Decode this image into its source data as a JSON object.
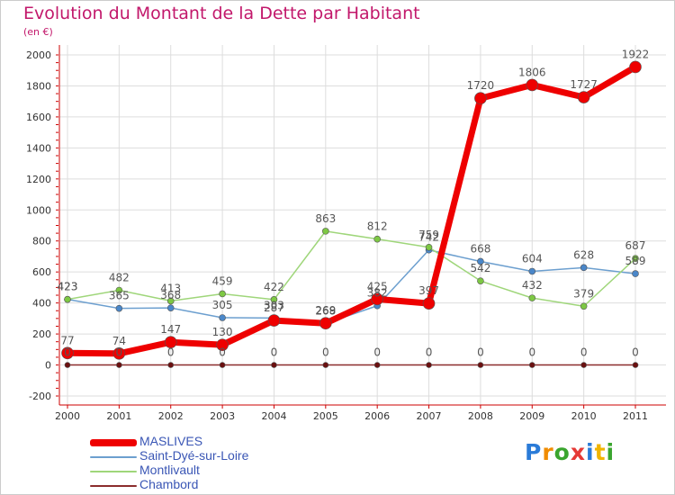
{
  "header": {
    "title": "Evolution du Montant de la Dette par Habitant",
    "subtitle": "(en €)"
  },
  "colors": {
    "title": "#c2186b",
    "grid": "#dddddd",
    "axis": "#cc0000",
    "legend_text": "#3a56b5"
  },
  "logo": {
    "letters": [
      {
        "ch": "P",
        "color": "#2a7bd8"
      },
      {
        "ch": "r",
        "color": "#f08c00"
      },
      {
        "ch": "o",
        "color": "#3aa52e"
      },
      {
        "ch": "x",
        "color": "#e53935"
      },
      {
        "ch": "i",
        "color": "#2a7bd8"
      },
      {
        "ch": "t",
        "color": "#f0b400"
      },
      {
        "ch": "i",
        "color": "#3aa52e"
      }
    ]
  },
  "chart_data": {
    "type": "line",
    "x": [
      "2000",
      "2001",
      "2002",
      "2003",
      "2004",
      "2005",
      "2006",
      "2007",
      "2008",
      "2009",
      "2010",
      "2011"
    ],
    "ylim": [
      -200,
      2000
    ],
    "yticks": [
      -200,
      0,
      200,
      400,
      600,
      800,
      1000,
      1200,
      1400,
      1600,
      1800,
      2000
    ],
    "grid": "horizontal",
    "legend_position": "bottom-left",
    "series": [
      {
        "name": "Chambord",
        "color": "#8b2c2c",
        "dot": "#6b1010",
        "width": 1.5,
        "r": 3,
        "values": [
          0,
          0,
          0,
          0,
          0,
          0,
          0,
          0,
          0,
          0,
          0,
          0
        ],
        "labels": [
          "0",
          "0",
          "0",
          "0",
          "0",
          "0",
          "0",
          "0",
          "0",
          "0",
          "0",
          "0"
        ]
      },
      {
        "name": "Saint-Dyé-sur-Loire",
        "color": "#6c9fcf",
        "dot": "#4a87c9",
        "width": 1.5,
        "r": 3.5,
        "values": [
          423,
          365,
          368,
          305,
          303,
          268,
          382,
          742,
          668,
          604,
          628,
          589
        ],
        "labels": [
          "423",
          "365",
          "368",
          "305",
          "303",
          "268",
          "382",
          "742",
          "668",
          "604",
          "628",
          "589"
        ]
      },
      {
        "name": "Montlivault",
        "color": "#9fd67a",
        "dot": "#7dc843",
        "width": 1.5,
        "r": 3.5,
        "values": [
          423,
          482,
          413,
          459,
          422,
          863,
          812,
          759,
          542,
          432,
          379,
          687
        ],
        "labels": [
          "423",
          "482",
          "413",
          "459",
          "422",
          "863",
          "812",
          "759",
          "542",
          "432",
          "379",
          "687"
        ]
      },
      {
        "name": "MASLIVES",
        "color": "#ee0000",
        "dot": "#ee0000",
        "width": 7,
        "r": 6.5,
        "values": [
          77,
          74,
          147,
          130,
          287,
          269,
          425,
          397,
          1720,
          1806,
          1727,
          1922
        ],
        "labels": [
          "77",
          "74",
          "147",
          "130",
          "287",
          "269",
          "425",
          "397",
          "1720",
          "1806",
          "1727",
          "1922"
        ]
      }
    ]
  },
  "legend": [
    {
      "name": "MASLIVES",
      "color": "#ee0000",
      "thickness": 8
    },
    {
      "name": "Saint-Dyé-sur-Loire",
      "color": "#6c9fcf",
      "thickness": 2
    },
    {
      "name": "Montlivault",
      "color": "#9fd67a",
      "thickness": 2
    },
    {
      "name": "Chambord",
      "color": "#8b2c2c",
      "thickness": 2
    }
  ]
}
